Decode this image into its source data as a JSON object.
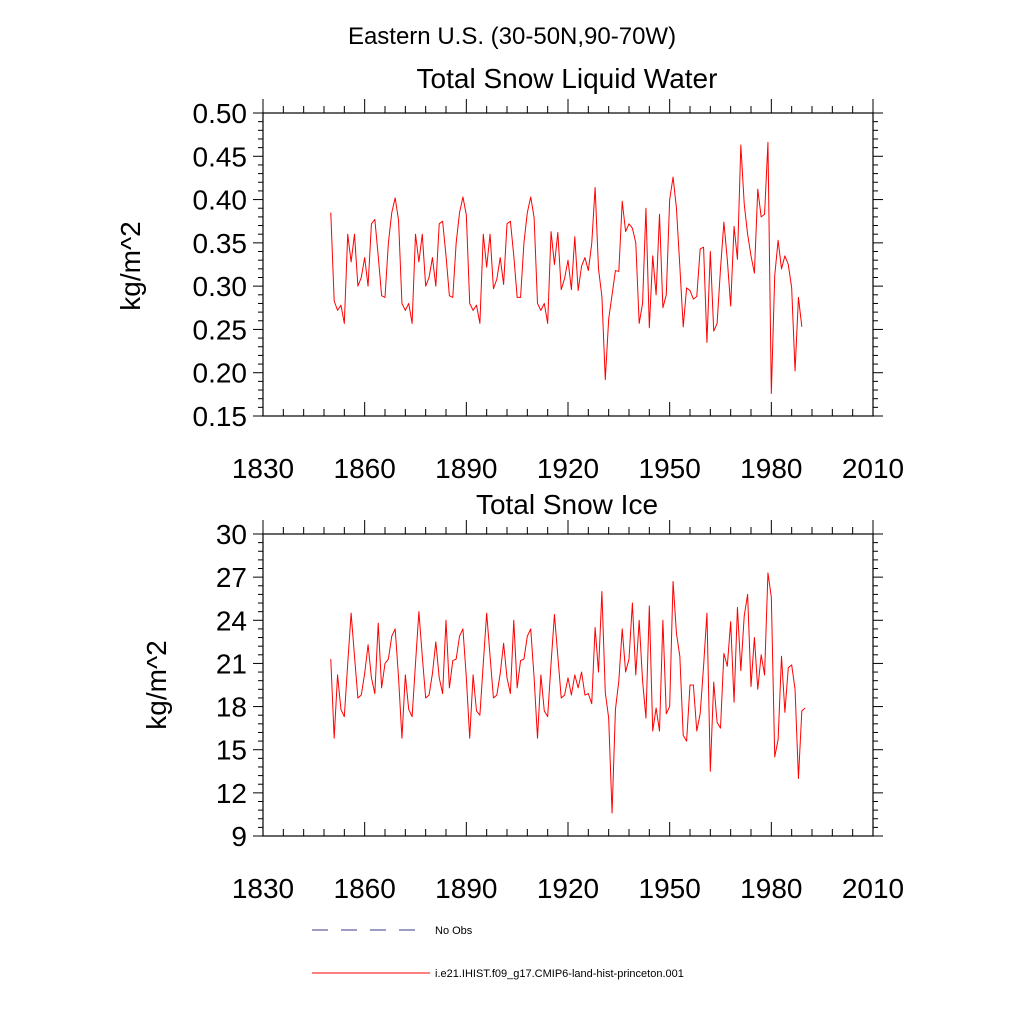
{
  "figure": {
    "title": "Eastern U.S. (30-50N,90-70W)"
  },
  "chart_data": [
    {
      "type": "line",
      "title": "Total Snow Liquid Water",
      "xlabel": "",
      "ylabel": "kg/m^2",
      "xlim": [
        1830,
        2010
      ],
      "ylim": [
        0.15,
        0.5
      ],
      "xticks": [
        1830,
        1860,
        1890,
        1920,
        1950,
        1980,
        2010
      ],
      "yticks": [
        0.15,
        0.2,
        0.25,
        0.3,
        0.35,
        0.4,
        0.45,
        0.5
      ],
      "ytick_labels": [
        "0.15",
        "0.20",
        "0.25",
        "0.30",
        "0.35",
        "0.40",
        "0.45",
        "0.50"
      ],
      "grid": false,
      "series": [
        {
          "name": "i.e21.IHIST.f09_g17.CMIP6-land-hist-princeton.001",
          "color": "#ff0000",
          "x_start": 1850,
          "values": [
            0.385,
            0.283,
            0.272,
            0.278,
            0.257,
            0.36,
            0.328,
            0.36,
            0.3,
            0.31,
            0.333,
            0.3,
            0.372,
            0.377,
            0.335,
            0.289,
            0.287,
            0.35,
            0.385,
            0.402,
            0.376,
            0.28,
            0.272,
            0.28,
            0.257,
            0.36,
            0.328,
            0.36,
            0.3,
            0.31,
            0.333,
            0.3,
            0.372,
            0.375,
            0.335,
            0.289,
            0.287,
            0.35,
            0.385,
            0.403,
            0.382,
            0.28,
            0.272,
            0.278,
            0.257,
            0.36,
            0.322,
            0.36,
            0.297,
            0.308,
            0.333,
            0.302,
            0.372,
            0.375,
            0.335,
            0.287,
            0.287,
            0.35,
            0.385,
            0.403,
            0.379,
            0.28,
            0.272,
            0.28,
            0.257,
            0.363,
            0.325,
            0.362,
            0.296,
            0.309,
            0.33,
            0.296,
            0.357,
            0.295,
            0.323,
            0.333,
            0.318,
            0.349,
            0.414,
            0.32,
            0.288,
            0.192,
            0.262,
            0.29,
            0.318,
            0.317,
            0.398,
            0.363,
            0.372,
            0.367,
            0.35,
            0.257,
            0.28,
            0.39,
            0.252,
            0.335,
            0.29,
            0.383,
            0.275,
            0.29,
            0.4,
            0.426,
            0.39,
            0.323,
            0.253,
            0.298,
            0.295,
            0.285,
            0.288,
            0.343,
            0.345,
            0.235,
            0.34,
            0.248,
            0.257,
            0.32,
            0.374,
            0.331,
            0.277,
            0.369,
            0.331,
            0.463,
            0.395,
            0.36,
            0.335,
            0.315,
            0.412,
            0.38,
            0.383,
            0.466,
            0.176,
            0.312,
            0.353,
            0.32,
            0.335,
            0.325,
            0.298,
            0.202,
            0.287,
            0.253
          ]
        }
      ]
    },
    {
      "type": "line",
      "title": "Total Snow Ice",
      "xlabel": "",
      "ylabel": "kg/m^2",
      "xlim": [
        1830,
        2010
      ],
      "ylim": [
        9,
        30
      ],
      "xticks": [
        1830,
        1860,
        1890,
        1920,
        1950,
        1980,
        2010
      ],
      "yticks": [
        9,
        12,
        15,
        18,
        21,
        24,
        27,
        30
      ],
      "ytick_labels": [
        "9",
        "12",
        "15",
        "18",
        "21",
        "24",
        "27",
        "30"
      ],
      "grid": false,
      "series": [
        {
          "name": "i.e21.IHIST.f09_g17.CMIP6-land-hist-princeton.001",
          "color": "#ff0000",
          "x_start": 1850,
          "values": [
            21.3,
            15.8,
            20.2,
            17.8,
            17.3,
            21.0,
            24.5,
            21.5,
            18.6,
            18.8,
            20.3,
            22.3,
            20.0,
            18.9,
            23.8,
            19.3,
            21.0,
            21.3,
            22.9,
            23.4,
            20.0,
            15.8,
            20.2,
            17.8,
            17.3,
            21.0,
            24.6,
            21.5,
            18.6,
            18.8,
            20.3,
            22.5,
            20.0,
            18.9,
            24.0,
            19.3,
            21.2,
            21.3,
            22.9,
            23.4,
            20.0,
            15.8,
            20.2,
            17.7,
            17.4,
            21.0,
            24.5,
            21.5,
            18.6,
            18.8,
            20.3,
            22.4,
            20.0,
            18.9,
            24.0,
            19.3,
            21.2,
            21.3,
            22.9,
            23.4,
            20.0,
            15.8,
            20.2,
            17.7,
            17.3,
            21.0,
            24.4,
            21.5,
            18.6,
            18.8,
            20.0,
            18.8,
            20.2,
            19.3,
            20.4,
            18.8,
            18.9,
            18.2,
            23.5,
            20.4,
            26.0,
            19.0,
            17.2,
            10.6,
            17.8,
            19.8,
            23.4,
            20.4,
            21.3,
            25.2,
            20.2,
            24.0,
            19.8,
            17.2,
            25.0,
            16.3,
            17.9,
            16.3,
            24.0,
            17.5,
            18.0,
            26.7,
            23.1,
            21.5,
            16.0,
            15.6,
            19.5,
            19.5,
            16.3,
            17.5,
            20.8,
            24.5,
            13.5,
            19.7,
            16.9,
            16.5,
            21.7,
            20.8,
            23.9,
            18.3,
            24.9,
            20.5,
            24.3,
            25.8,
            19.4,
            22.8,
            19.2,
            21.6,
            20.2,
            27.3,
            25.6,
            14.5,
            15.7,
            21.5,
            17.6,
            20.7,
            20.9,
            19.2,
            13.0,
            17.7,
            17.9
          ]
        }
      ]
    }
  ],
  "legend": {
    "items": [
      {
        "label": "No Obs",
        "color": "#3a3a8a",
        "style": "dashed"
      },
      {
        "label": "i.e21.IHIST.f09_g17.CMIP6-land-hist-princeton.001",
        "color": "#ff0000",
        "style": "solid"
      }
    ]
  }
}
